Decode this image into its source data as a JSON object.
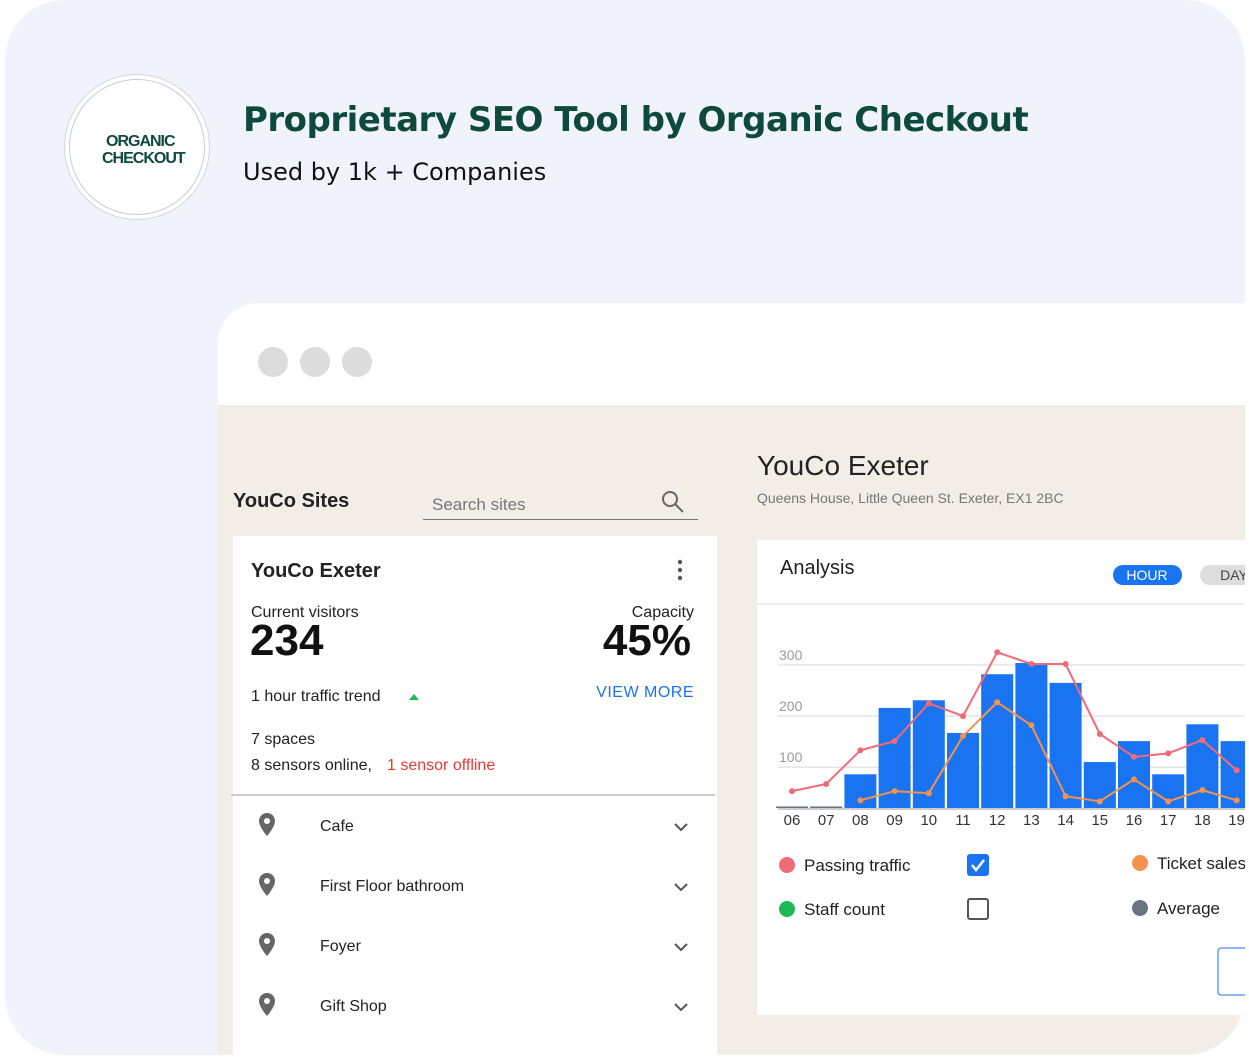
{
  "header": {
    "logo": [
      "ORGANIC",
      "CHECKOUT"
    ],
    "title": "Proprietary SEO Tool by Organic Checkout",
    "subtitle": "Used by 1k + Companies"
  },
  "sidebar": {
    "title": "YouCo Sites",
    "search_placeholder": "Search sites",
    "site": {
      "name": "YouCo Exeter",
      "visitors_label": "Current visitors",
      "visitors": "234",
      "capacity_label": "Capacity",
      "capacity": "45%",
      "trend": "1 hour traffic trend",
      "view_more": "VIEW MORE",
      "spaces": "7 spaces",
      "sensors_online": "8 sensors online,",
      "sensors_offline": "1 sensor offline"
    },
    "spaces": [
      "Cafe",
      "First Floor bathroom",
      "Foyer",
      "Gift Shop"
    ]
  },
  "main": {
    "title": "YouCo Exeter",
    "address": "Queens House, Little Queen St. Exeter, EX1 2BC",
    "analysis": {
      "title": "Analysis",
      "tabs": [
        "HOUR",
        "DAY"
      ],
      "chart": {
        "type": "bar",
        "categories": [
          "06",
          "07",
          "08",
          "09",
          "10",
          "11",
          "12",
          "13",
          "14",
          "15",
          "16",
          "17",
          "18",
          "19"
        ],
        "ylim": [
          20,
          350
        ],
        "yticks": [
          100,
          200,
          300
        ],
        "grid": true,
        "series": [
          {
            "type": "bar",
            "color": "#1a73f0",
            "colors": [
              "#6b7280",
              "#6b7280",
              "#1a73f0",
              "#1a73f0",
              "#1a73f0",
              "#1a73f0",
              "#1a73f0",
              "#1a73f0",
              "#1a73f0",
              "#1a73f0",
              "#1a73f0",
              "#1a73f0",
              "#1a73f0",
              "#1a73f0"
            ],
            "values": [
              23,
              23,
              86,
              216,
              231,
              167,
              282,
              304,
              265,
              110,
              151,
              86,
              184,
              151
            ]
          },
          {
            "type": "line",
            "color": "#f06b78",
            "values": [
              53,
              67,
              133,
              151,
              225,
              200,
              325,
              302,
              302,
              165,
              120,
              127,
              153,
              94
            ]
          },
          {
            "type": "line",
            "color": "#f5924e",
            "values": [
              null,
              null,
              35,
              53,
              49,
              161,
              227,
              182,
              43,
              33,
              76,
              33,
              55,
              35
            ]
          }
        ],
        "legend": [
          {
            "name": "Passing traffic",
            "color": "#f06b78",
            "checked": true
          },
          {
            "name": "Ticket sales",
            "color": "#f5924e"
          },
          {
            "name": "Staff count",
            "color": "#1db954",
            "checked": false
          },
          {
            "name": "Average",
            "color": "#6b7280"
          }
        ]
      }
    }
  }
}
